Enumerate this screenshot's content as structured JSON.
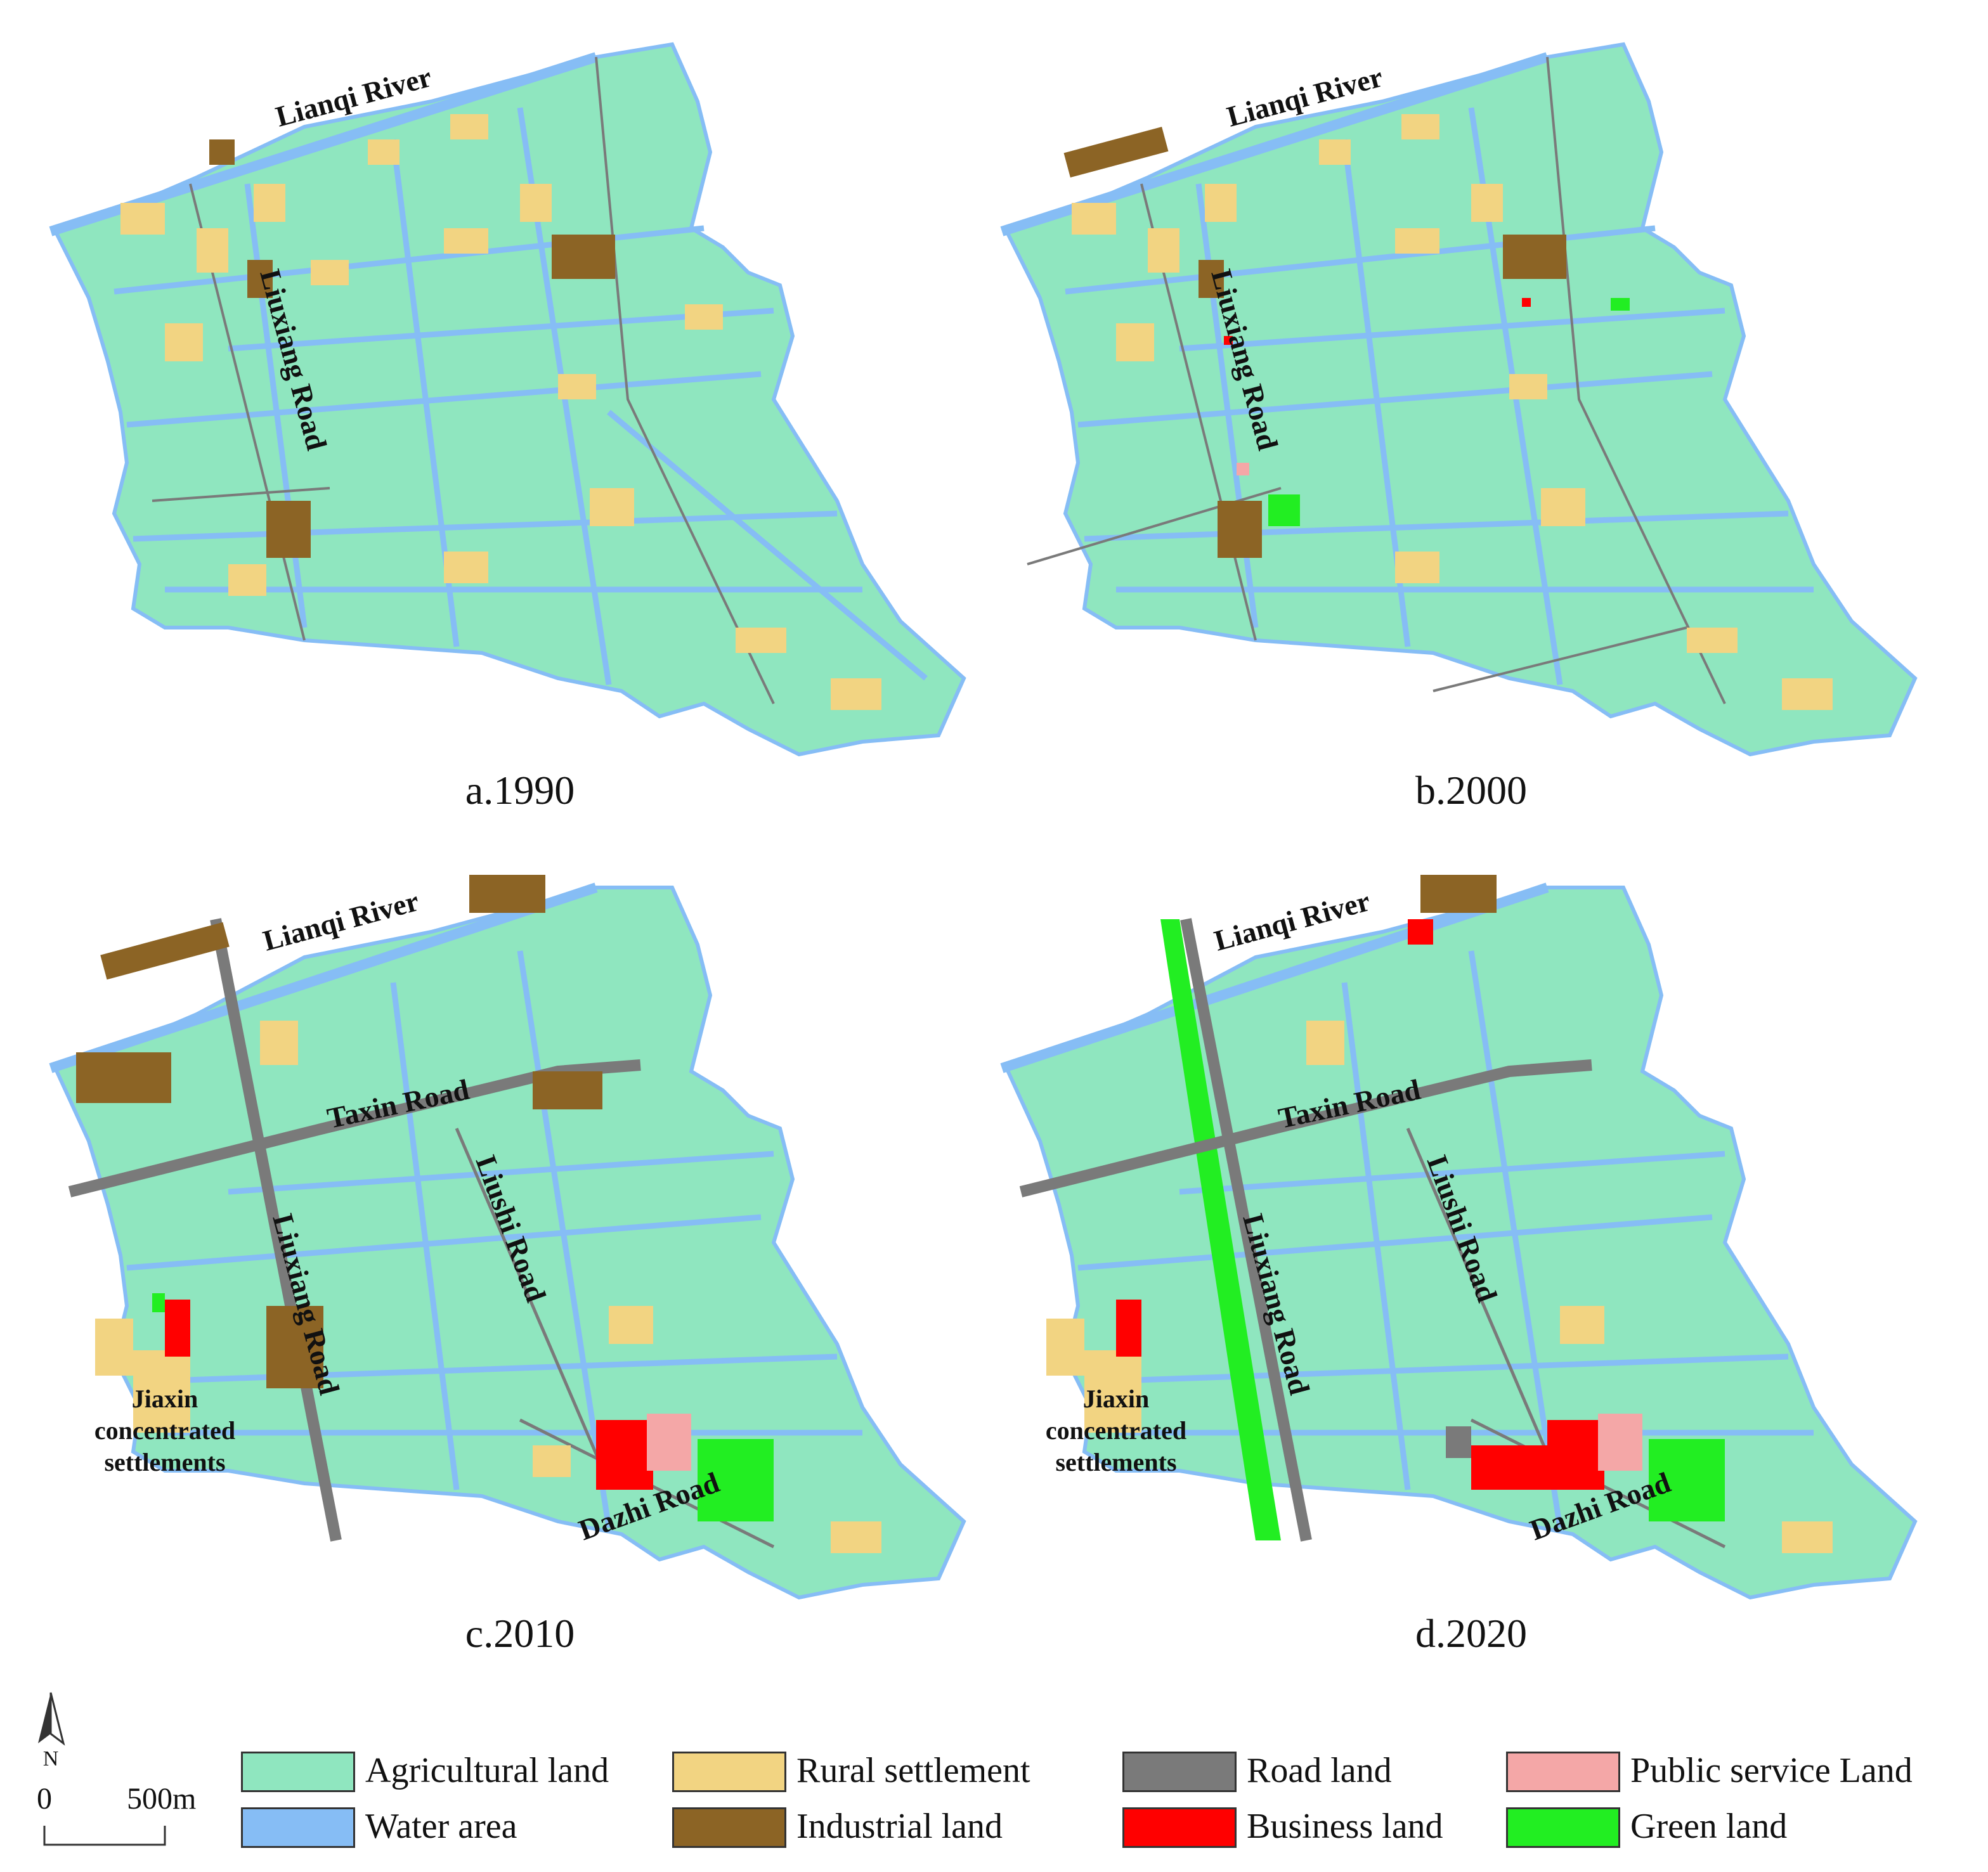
{
  "colors": {
    "agricultural": "#8fe6bf",
    "water": "#86bdf5",
    "rural": "#f2d482",
    "industrial": "#8c6425",
    "road": "#7a7a7a",
    "business": "#ff0000",
    "public": "#f4a7a7",
    "green": "#22ee22"
  },
  "panels": [
    {
      "caption": "a.1990",
      "labels": {
        "river": "Lianqi  River",
        "liuxiang": "Liuxiang Road"
      }
    },
    {
      "caption": "b.2000",
      "labels": {
        "river": "Lianqi  River",
        "liuxiang": "Liuxiang Road"
      }
    },
    {
      "caption": "c.2010",
      "labels": {
        "river": "Lianqi  River",
        "liuxiang": "Liuxiang Road",
        "taxin": "Taxin Road",
        "liushi": "Liushi Road",
        "dazhi": "Dazhi Road",
        "jiaxin_1": "Jiaxin",
        "jiaxin_2": "concentrated",
        "jiaxin_3": "settlements"
      }
    },
    {
      "caption": "d.2020",
      "labels": {
        "river": "Lianqi  River",
        "liuxiang": "Liuxiang Road",
        "taxin": "Taxin Road",
        "liushi": "Liushi Road",
        "dazhi": "Dazhi Road",
        "jiaxin_1": "Jiaxin",
        "jiaxin_2": "concentrated",
        "jiaxin_3": "settlements"
      }
    }
  ],
  "north_label": "N",
  "scale_bar": {
    "start": "0",
    "end": "500m"
  },
  "legend": [
    {
      "label": "Agricultural land",
      "color": "#8fe6bf"
    },
    {
      "label": "Rural settlement",
      "color": "#f2d482"
    },
    {
      "label": "Road land",
      "color": "#7a7a7a"
    },
    {
      "label": "Public service Land",
      "color": "#f4a7a7"
    },
    {
      "label": "Water area",
      "color": "#86bdf5"
    },
    {
      "label": "Industrial land",
      "color": "#8c6425"
    },
    {
      "label": "Business land",
      "color": "#ff0000"
    },
    {
      "label": "Green land",
      "color": "#22ee22"
    }
  ]
}
